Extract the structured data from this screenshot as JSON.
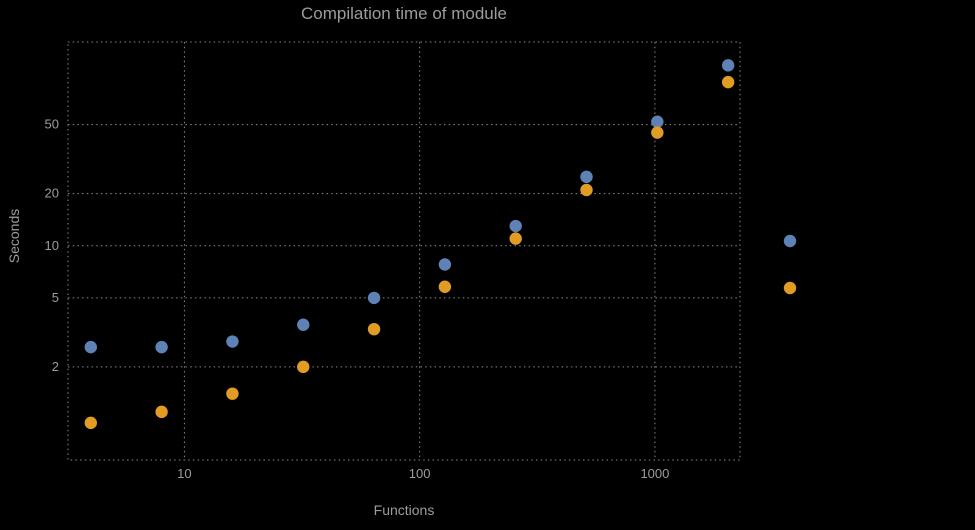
{
  "colors": {
    "background": "#000000",
    "text": "#9c9c9c",
    "grid": "#8a8a8a",
    "series_blue": "#5e82b5",
    "series_orange": "#e19c24"
  },
  "chart_data": {
    "type": "scatter",
    "title": "Compilation time of module",
    "xlabel": "Functions",
    "ylabel": "Seconds",
    "x_scale": "log",
    "y_scale": "log",
    "x": [
      4,
      8,
      16,
      32,
      64,
      128,
      256,
      512,
      1024,
      2048
    ],
    "series": [
      {
        "name": "blue",
        "color": "#5e82b5",
        "values": [
          2.6,
          2.6,
          2.8,
          3.5,
          5.0,
          7.8,
          13,
          25,
          52,
          110
        ]
      },
      {
        "name": "orange",
        "color": "#e19c24",
        "values": [
          0.95,
          1.1,
          1.4,
          2.0,
          3.3,
          5.8,
          11,
          21,
          45,
          88
        ]
      }
    ],
    "x_ticks": [
      10,
      100,
      1000
    ],
    "y_ticks": [
      2,
      5,
      10,
      20,
      50
    ],
    "xlim": [
      3.2,
      2300
    ],
    "ylim": [
      0.58,
      150
    ],
    "grid": true,
    "grid_style": "dotted",
    "legend_position": "right",
    "legend": [
      {
        "label": "",
        "color": "#5e82b5"
      },
      {
        "label": "",
        "color": "#e19c24"
      }
    ]
  }
}
